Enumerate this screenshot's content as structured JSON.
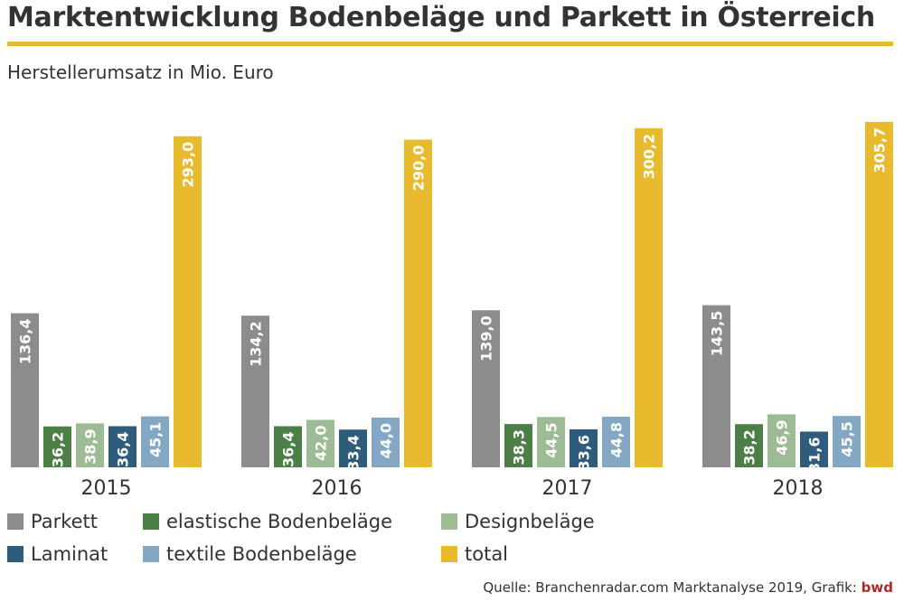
{
  "title": "Marktentwicklung Bodenbeläge und Parkett in Österreich",
  "subtitle": "Herstellerumsatz in Mio. Euro",
  "source_text": "Quelle: Branchenradar.com Marktanalyse 2019, Grafik: ",
  "source_brand": "bwd",
  "colors": {
    "accent": "#e8bb2f",
    "brand": "#b0292a"
  },
  "chart_data": {
    "type": "bar",
    "categories": [
      "2015",
      "2016",
      "2017",
      "2018"
    ],
    "ylim": [
      0,
      320
    ],
    "grid": false,
    "legend_position": "bottom",
    "series": [
      {
        "name": "Parkett",
        "color": "#8c8c8c",
        "values": [
          136.4,
          134.2,
          139.0,
          143.5
        ],
        "labels": [
          "136,4",
          "134,2",
          "139,0",
          "143,5"
        ]
      },
      {
        "name": "elastische Bodenbeläge",
        "color": "#4b7f45",
        "values": [
          36.2,
          36.4,
          38.3,
          38.2
        ],
        "labels": [
          "36,2",
          "36,4",
          "38,3",
          "38,2"
        ]
      },
      {
        "name": "Designbeläge",
        "color": "#9dbb95",
        "values": [
          38.9,
          42.0,
          44.5,
          46.9
        ],
        "labels": [
          "38,9",
          "42,0",
          "44,5",
          "46,9"
        ]
      },
      {
        "name": "Laminat",
        "color": "#2f5b7d",
        "values": [
          36.4,
          33.4,
          33.6,
          31.6
        ],
        "labels": [
          "36,4",
          "33,4",
          "33,6",
          "31,6"
        ]
      },
      {
        "name": "textile Bodenbeläge",
        "color": "#84a8c4",
        "values": [
          45.1,
          44.0,
          44.8,
          45.5
        ],
        "labels": [
          "45,1",
          "44,0",
          "44,8",
          "45,5"
        ]
      },
      {
        "name": "total",
        "color": "#e8bb2f",
        "values": [
          293.0,
          290.0,
          300.2,
          305.7
        ],
        "labels": [
          "293,0",
          "290,0",
          "300,2",
          "305,7"
        ]
      }
    ]
  }
}
